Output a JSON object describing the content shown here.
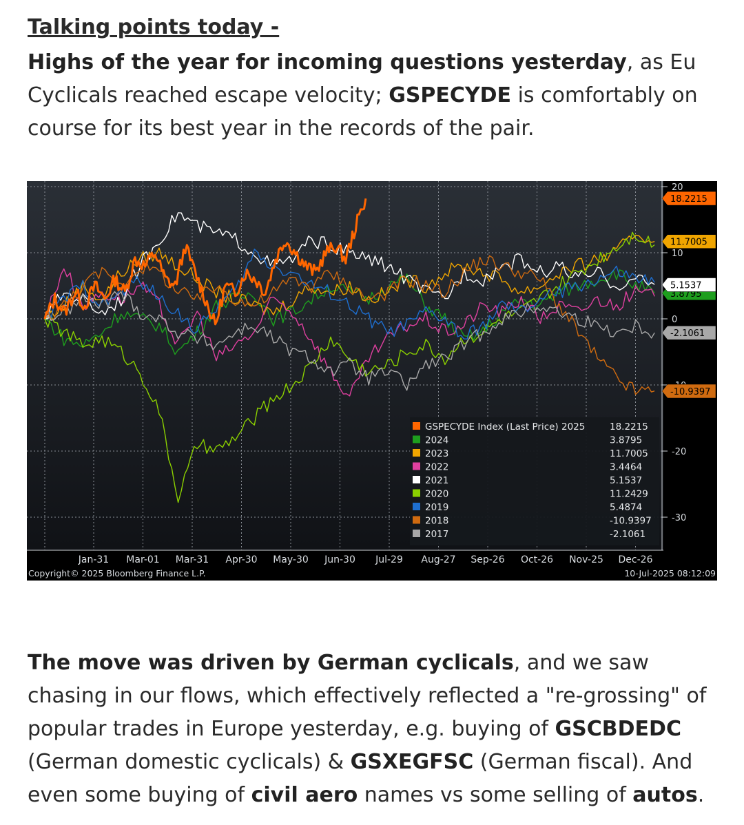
{
  "header": {
    "title": "Talking points today -"
  },
  "intro": {
    "bold1": "Highs of the year for incoming questions yesterday",
    "text1": ", as Eu Cyclicals reached escape velocity; ",
    "bold2": "GSPECYDE",
    "text2": " is comfortably on course for its best year in the records of the pair."
  },
  "chart_data": {
    "type": "line",
    "ylim": [
      -35,
      20
    ],
    "yticks": [
      20,
      10,
      0,
      -10,
      -20,
      -30
    ],
    "x_tick_labels": [
      "Jan-31",
      "Mar-01",
      "Mar-31",
      "Apr-30",
      "May-30",
      "Jun-30",
      "Jul-29",
      "Aug-27",
      "Sep-26",
      "Oct-26",
      "Nov-25",
      "Dec-26"
    ],
    "copyright": "Copyright© 2025 Bloomberg Finance L.P.",
    "timestamp": "10-Jul-2025 08:12:09",
    "series": [
      {
        "name": "GSPECYDE Index (Last Price) 2025",
        "last": "18.2215",
        "color": "#ff6600",
        "bold": true,
        "ends": 0.52,
        "values": [
          0,
          3,
          1,
          4,
          2,
          5,
          3,
          6,
          4,
          9,
          8,
          10,
          6,
          5,
          11,
          7,
          3,
          -1,
          5,
          4,
          7,
          6,
          4,
          9,
          12,
          10,
          8,
          7,
          10,
          11,
          9,
          14,
          18.2
        ]
      },
      {
        "name": "2024",
        "last": "3.8795",
        "color": "#1e9e1e",
        "values": [
          0,
          -3,
          -4,
          -2,
          1,
          0,
          -1,
          -5,
          -2,
          2,
          3,
          4,
          0,
          1,
          3,
          5,
          4,
          3,
          5,
          6,
          2,
          0,
          -3,
          -2,
          1,
          3,
          2,
          4,
          5,
          6,
          7,
          5,
          3.9
        ]
      },
      {
        "name": "2023",
        "last": "11.7005",
        "color": "#f0a500",
        "values": [
          0,
          2,
          5,
          3,
          7,
          9,
          10,
          8,
          6,
          4,
          3,
          2,
          1,
          3,
          5,
          4,
          5,
          3,
          4,
          6,
          5,
          7,
          8,
          7,
          6,
          4,
          5,
          7,
          8,
          9,
          10,
          13,
          11.7
        ]
      },
      {
        "name": "2022",
        "last": "3.4464",
        "color": "#e040a0",
        "values": [
          0,
          8,
          2,
          4,
          3,
          5,
          2,
          -4,
          1,
          -6,
          -4,
          -2,
          3,
          1,
          -3,
          -8,
          -12,
          -6,
          -3,
          -1,
          0,
          -2,
          -1,
          2,
          1,
          3,
          0,
          2,
          1,
          3,
          2,
          4,
          3.4
        ]
      },
      {
        "name": "2021",
        "last": "5.1537",
        "color": "#ffffff",
        "values": [
          0,
          4,
          3,
          1,
          3,
          8,
          12,
          16,
          14,
          13,
          12,
          10,
          8,
          9,
          12,
          11,
          10,
          9,
          8,
          6,
          4,
          3,
          7,
          6,
          8,
          9,
          7,
          8,
          6,
          7,
          5,
          6,
          5.2
        ]
      },
      {
        "name": "2020",
        "last": "11.2429",
        "color": "#8bd000",
        "values": [
          0,
          -2,
          -4,
          -3,
          -5,
          -8,
          -14,
          -27,
          -19,
          -20,
          -18,
          -15,
          -12,
          -10,
          -7,
          -3,
          -6,
          -8,
          -7,
          -5,
          -4,
          -6,
          -3,
          -2,
          0,
          1,
          3,
          5,
          7,
          9,
          11,
          13,
          11.2
        ]
      },
      {
        "name": "2019",
        "last": "5.4874",
        "color": "#1e6fd0",
        "values": [
          0,
          3,
          5,
          2,
          4,
          6,
          3,
          1,
          -2,
          2,
          4,
          10,
          8,
          7,
          5,
          4,
          2,
          0,
          -2,
          -1,
          1,
          0,
          -3,
          -1,
          2,
          1,
          3,
          4,
          5,
          6,
          7,
          6,
          5.5
        ]
      },
      {
        "name": "2018",
        "last": "-10.9397",
        "color": "#d06b10",
        "values": [
          0,
          2,
          5,
          7,
          5,
          8,
          7,
          4,
          3,
          5,
          3,
          2,
          4,
          6,
          5,
          7,
          5,
          3,
          4,
          6,
          5,
          4,
          7,
          9,
          8,
          7,
          6,
          2,
          -2,
          -6,
          -9,
          -11,
          -10.9
        ]
      },
      {
        "name": "2017",
        "last": "-2.1061",
        "color": "#a8a8a8",
        "values": [
          0,
          1,
          3,
          2,
          4,
          1,
          0,
          -2,
          -3,
          -4,
          -2,
          -1,
          -3,
          -5,
          -6,
          -8,
          -7,
          -9,
          -8,
          -10,
          -7,
          -6,
          -4,
          -2,
          0,
          1,
          2,
          1,
          0,
          -1,
          -2,
          -1,
          -2.1
        ]
      }
    ]
  },
  "body2": {
    "bold1": "The move was driven by German cyclicals",
    "text1": ", and we saw chasing in our flows, which effectively reflected a \"re-grossing\" of popular trades in Europe yesterday, e.g. buying of ",
    "bold2": "GSCBDEDC",
    "text2": " (German domestic cyclicals) & ",
    "bold3": "GSXEGFSC",
    "text3": " (German fiscal). And even some buying of ",
    "bold4": "civil aero",
    "text4": " names vs some selling of ",
    "bold5": "autos",
    "text5": "."
  }
}
